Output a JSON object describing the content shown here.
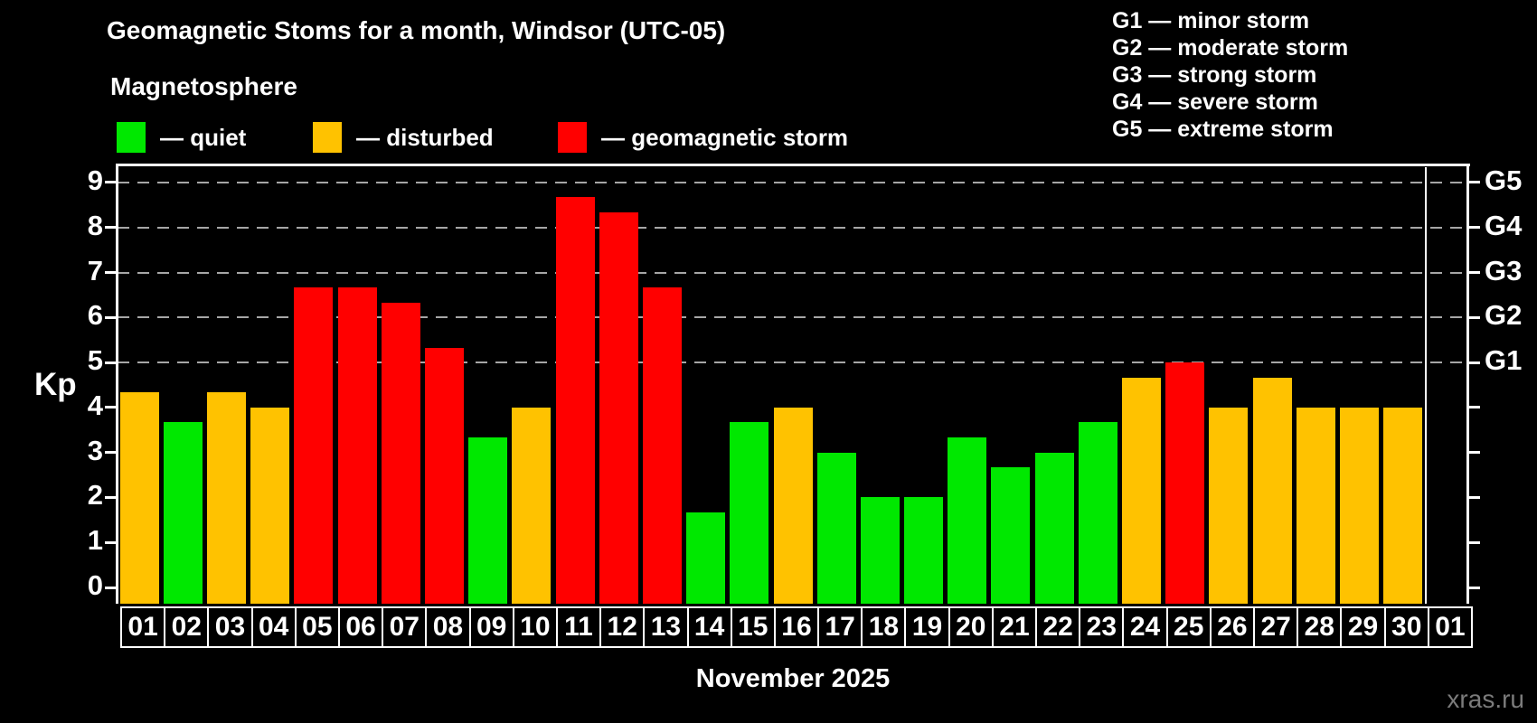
{
  "header": {
    "title": "Geomagnetic Stoms for a month, Windsor (UTC-05)",
    "subtitle": "Magnetosphere"
  },
  "legend": {
    "items": [
      {
        "name": "quiet",
        "label": "— quiet",
        "color": "#00e800"
      },
      {
        "name": "disturbed",
        "label": "— disturbed",
        "color": "#ffc200"
      },
      {
        "name": "storm",
        "label": "— geomagnetic storm",
        "color": "#ff0000"
      }
    ]
  },
  "storm_scale_legend": {
    "items": [
      "G1 — minor storm",
      "G2 — moderate storm",
      "G3 — strong storm",
      "G4 — severe storm",
      "G5 — extreme storm"
    ]
  },
  "chart_data": {
    "type": "bar",
    "title": "Geomagnetic Stoms for a month, Windsor (UTC-05)",
    "ylabel": "Kp",
    "xlabel": "November 2025",
    "ylim": [
      0,
      9
    ],
    "yticks": [
      0,
      1,
      2,
      3,
      4,
      5,
      6,
      7,
      8,
      9
    ],
    "gridlines_kp": [
      5,
      6,
      7,
      8,
      9
    ],
    "grid": "dashed horizontal at storm levels only",
    "right_axis": [
      {
        "kp": 5,
        "label": "G1"
      },
      {
        "kp": 6,
        "label": "G2"
      },
      {
        "kp": 7,
        "label": "G3"
      },
      {
        "kp": 8,
        "label": "G4"
      },
      {
        "kp": 9,
        "label": "G5"
      }
    ],
    "categories": [
      "01",
      "02",
      "03",
      "04",
      "05",
      "06",
      "07",
      "08",
      "09",
      "10",
      "11",
      "12",
      "13",
      "14",
      "15",
      "16",
      "17",
      "18",
      "19",
      "20",
      "21",
      "22",
      "23",
      "24",
      "25",
      "26",
      "27",
      "28",
      "29",
      "30",
      "01"
    ],
    "values": [
      4.33,
      3.67,
      4.33,
      4.0,
      6.67,
      6.67,
      6.33,
      5.33,
      3.33,
      4.0,
      8.67,
      8.33,
      6.67,
      1.67,
      3.67,
      4.0,
      3.0,
      2.0,
      2.0,
      3.33,
      2.67,
      3.0,
      3.67,
      4.67,
      5.0,
      4.0,
      4.67,
      4.0,
      4.0,
      4.0,
      null
    ],
    "states": [
      "disturbed",
      "quiet",
      "disturbed",
      "disturbed",
      "storm",
      "storm",
      "storm",
      "storm",
      "quiet",
      "disturbed",
      "storm",
      "storm",
      "storm",
      "quiet",
      "quiet",
      "disturbed",
      "quiet",
      "quiet",
      "quiet",
      "quiet",
      "quiet",
      "quiet",
      "quiet",
      "disturbed",
      "storm",
      "disturbed",
      "disturbed",
      "disturbed",
      "disturbed",
      "disturbed",
      null
    ],
    "separator_before_category_index": 30
  },
  "footer": {
    "xaxis_title": "November 2025",
    "watermark": "xras.ru"
  }
}
